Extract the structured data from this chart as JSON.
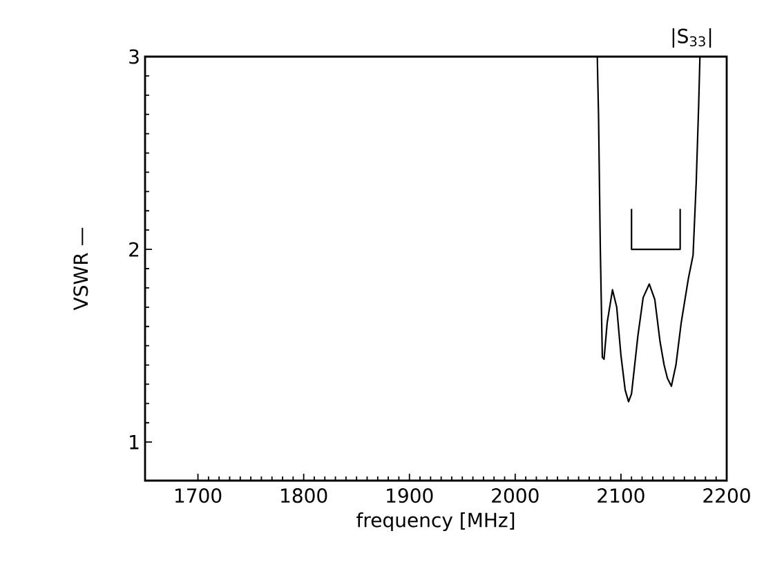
{
  "chart_data": {
    "type": "line",
    "title": "|S$_{33}$|",
    "xlabel": "frequency  [MHz]",
    "ylabel": "VSWR —",
    "xlim": [
      1650,
      2200
    ],
    "xticks": [
      1700,
      1800,
      1900,
      2000,
      2100,
      2200
    ],
    "ylim": [
      0.8,
      3
    ],
    "yticks": [
      1,
      2,
      3
    ],
    "series": [
      {
        "color": "#000000",
        "x": [
          2077.6,
          2078.8,
          2080.5,
          2082.4,
          2084,
          2087,
          2092,
          2096,
          2100,
          2104,
          2107.2,
          2110,
          2116,
          2121,
          2126.8,
          2132,
          2137,
          2140.8,
          2144,
          2147.7,
          2152,
          2157,
          2163.8,
          2168.2,
          2171.2,
          2173.5,
          2174.7
        ],
        "values": [
          3.0,
          2.7,
          2.0,
          1.44,
          1.43,
          1.62,
          1.79,
          1.7,
          1.45,
          1.27,
          1.21,
          1.25,
          1.55,
          1.75,
          1.82,
          1.74,
          1.52,
          1.4,
          1.33,
          1.29,
          1.4,
          1.62,
          1.85,
          1.97,
          2.35,
          2.75,
          3.0
        ]
      },
      {
        "color": "#000000",
        "x": [
          2110,
          2110,
          2156,
          2156
        ],
        "values": [
          2.21,
          2.0,
          2.0,
          2.21
        ]
      }
    ],
    "grid": false,
    "marker": "none",
    "line_style": "solid"
  }
}
